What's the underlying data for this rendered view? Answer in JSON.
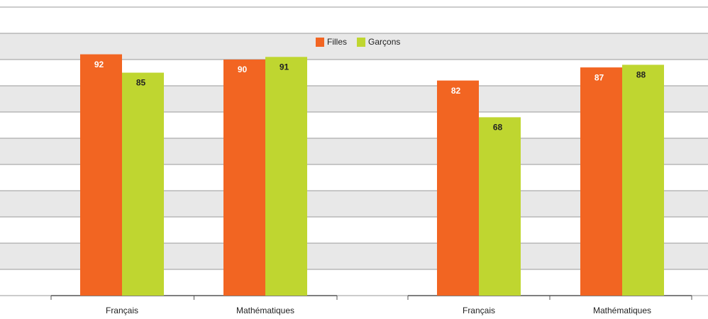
{
  "chart_data": {
    "type": "bar",
    "categories": [
      "Français",
      "Mathématiques",
      "Français",
      "Mathématiques"
    ],
    "series": [
      {
        "name": "Filles",
        "color": "#f26522",
        "values": [
          92,
          90,
          82,
          87
        ]
      },
      {
        "name": "Garçons",
        "color": "#bfd630",
        "values": [
          85,
          91,
          68,
          88
        ]
      }
    ],
    "ylim": [
      0,
      110
    ],
    "yticks": [
      0,
      10,
      20,
      30,
      40,
      50,
      60,
      70,
      80,
      90,
      100,
      110
    ],
    "grid": true,
    "legend": "top"
  }
}
